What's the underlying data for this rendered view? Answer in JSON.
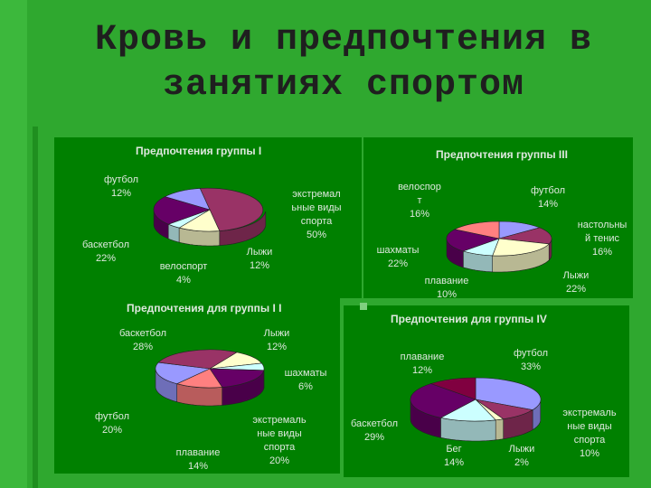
{
  "slide": {
    "title_line1": "Кровь и предпочтения в",
    "title_line2": "занятиях спортом"
  },
  "colors": {
    "background": "#2fa82f",
    "panel": "#008000",
    "text": "#dfe8df",
    "title": "#1f1f1f"
  },
  "chart_data": [
    {
      "type": "pie",
      "title": "Предпочтения группы I",
      "categories": [
        "экстремальные виды спорта",
        "Лыжи",
        "велоспорт",
        "баскетбол",
        "футбол"
      ],
      "values": [
        50,
        12,
        4,
        22,
        12
      ],
      "label_text": [
        "экстремал\nьные виды\nспорта\n50%",
        "Лыжи\n12%",
        "велоспорт\n4%",
        "баскетбол\n22%",
        "футбол\n12%"
      ],
      "colors": [
        "#993366",
        "#ffffcc",
        "#ccffff",
        "#660066",
        "#9999ff"
      ]
    },
    {
      "type": "pie",
      "title": "Предпочтения группы III",
      "categories": [
        "футбол",
        "настольный тенис",
        "Лыжи",
        "плавание",
        "шахматы",
        "велоспорт"
      ],
      "values": [
        14,
        16,
        22,
        10,
        22,
        16
      ],
      "label_text": [
        "футбол\n14%",
        "настольны\nй тенис\n16%",
        "Лыжи\n22%",
        "плавание\n10%",
        "шахматы\n22%",
        "велоспор\nт\n16%"
      ],
      "colors": [
        "#9999ff",
        "#993366",
        "#ffffcc",
        "#ccffff",
        "#660066",
        "#ff8080"
      ]
    },
    {
      "type": "pie",
      "title": "Предпочтения для группы I I",
      "categories": [
        "Лыжи",
        "шахматы",
        "экстремальные виды спорта",
        "плавание",
        "футбол",
        "баскетбол"
      ],
      "values": [
        12,
        6,
        20,
        14,
        20,
        28
      ],
      "label_text": [
        "Лыжи\n12%",
        "шахматы\n6%",
        "экстремаль\nные виды\nспорта\n20%",
        "плавание\n14%",
        "футбол\n20%",
        "баскетбол\n28%"
      ],
      "colors": [
        "#ffffcc",
        "#ccffff",
        "#660066",
        "#ff8080",
        "#9999ff",
        "#993366"
      ]
    },
    {
      "type": "pie",
      "title": "Предпочтения для группы IV",
      "categories": [
        "футбол",
        "экстремальные виды спорта",
        "Лыжи",
        "Бег",
        "баскетбол",
        "плавание"
      ],
      "values": [
        33,
        10,
        2,
        14,
        29,
        12
      ],
      "label_text": [
        "футбол\n33%",
        "экстремаль\nные виды\nспорта\n10%",
        "Лыжи\n2%",
        "Бег\n14%",
        "баскетбол\n29%",
        "плавание\n12%"
      ],
      "colors": [
        "#9999ff",
        "#993366",
        "#ffffcc",
        "#ccffff",
        "#660066",
        "#800040"
      ]
    }
  ]
}
